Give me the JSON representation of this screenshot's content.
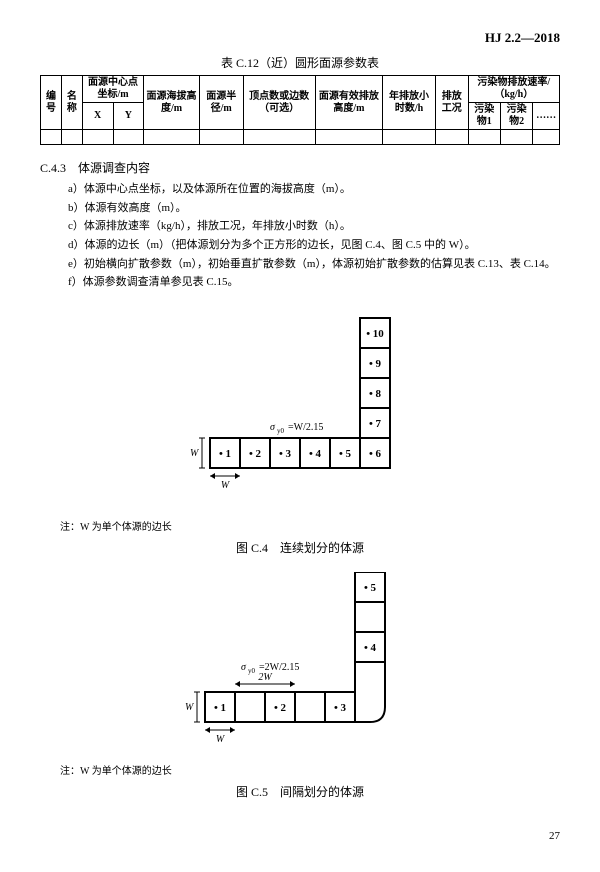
{
  "doc_code": "HJ 2.2—2018",
  "table": {
    "title": "表 C.12（近）圆形面源参数表",
    "headers": {
      "c1": "编号",
      "c2": "名称",
      "c3_top": "面源中心点坐标/m",
      "c3a": "X",
      "c3b": "Y",
      "c4": "面源海拔高度/m",
      "c5": "面源半径/m",
      "c6": "顶点数或边数（可选）",
      "c7": "面源有效排放高度/m",
      "c8": "年排放小时数/h",
      "c9": "排放工况",
      "c10_top": "污染物排放速率/（kg/h）",
      "c10a": "污染物1",
      "c10b": "污染物2",
      "c10c": "……"
    }
  },
  "section": {
    "num": "C.4.3",
    "title": "体源调查内容",
    "items": {
      "a": "a）体源中心点坐标，以及体源所在位置的海拔高度（m）。",
      "b": "b）体源有效高度（m）。",
      "c": "c）体源排放速率（kg/h），排放工况，年排放小时数（h）。",
      "d": "d）体源的边长（m）（把体源划分为多个正方形的边长，见图 C.4、图 C.5 中的 W）。",
      "e": "e）初始横向扩散参数（m），初始垂直扩散参数（m），体源初始扩散参数的估算见表 C.13、表 C.14。",
      "f": "f）体源参数调查清单参见表 C.15。"
    }
  },
  "fig1": {
    "sigma_label": "σ_{y0}=W/2.15",
    "w_label": "W",
    "cells": [
      "1",
      "2",
      "3",
      "4",
      "5",
      "6",
      "7",
      "8",
      "9",
      "10"
    ],
    "note": "注：W 为单个体源的边长",
    "caption": "图 C.4　连续划分的体源"
  },
  "fig2": {
    "sigma_label": "σ_{y0}=2W/2.15",
    "w_label": "W",
    "tw_label": "2W",
    "cells": [
      "1",
      "2",
      "3",
      "4",
      "5"
    ],
    "note": "注：W 为单个体源的边长",
    "caption": "图 C.5　间隔划分的体源"
  },
  "page": "27",
  "style": {
    "cell_stroke": "#000000",
    "cell_fill": "#ffffff",
    "cell_size": 30,
    "line_width": 2,
    "dot_char": "•"
  }
}
